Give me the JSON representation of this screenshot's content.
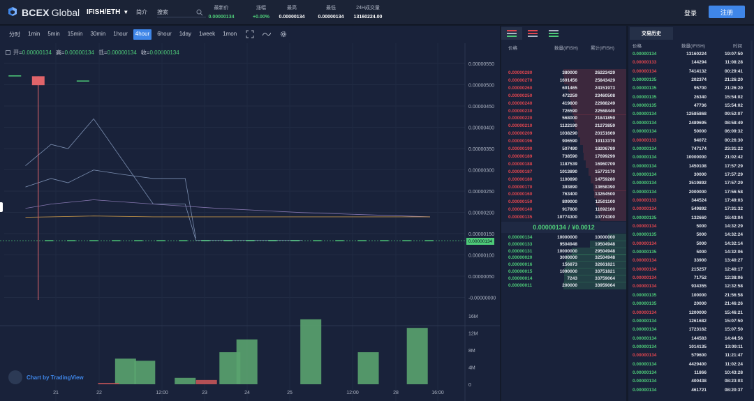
{
  "app": {
    "brand_bold": "BCEX",
    "brand_rest": "Global",
    "pair": "IFISH/ETH",
    "intro_label": "简介",
    "search_placeholder": "搜索",
    "login": "登录",
    "register": "注册"
  },
  "stats": [
    {
      "label": "最新价",
      "value": "0.00000134",
      "color": "#4ecc79",
      "x": 317
    },
    {
      "label": "涨幅",
      "value": "+0.00%",
      "color": "#4ecc79",
      "x": 374
    },
    {
      "label": "最高",
      "value": "0.00000134",
      "color": "#ffffff",
      "x": 418
    },
    {
      "label": "最低",
      "value": "0.00000134",
      "color": "#ffffff",
      "x": 474
    },
    {
      "label": "24H成交量",
      "value": "13160224.00",
      "color": "#ffffff",
      "x": 527
    }
  ],
  "toolbar": {
    "intervals": [
      "分时",
      "1min",
      "5min",
      "15min",
      "30min",
      "1hour",
      "4hour",
      "6hour",
      "1day",
      "1week",
      "1mon"
    ],
    "active": "4hour"
  },
  "ohlc": {
    "open_label": "开=",
    "open": "0.00000134",
    "high_label": "高=",
    "high": "0.00000134",
    "low_label": "低=",
    "low": "0.00000134",
    "close_label": "收=",
    "close": "0.00000134"
  },
  "tv_label": "Chart by TradingView",
  "last_price_tag": "0.00000134",
  "chart_data": {
    "type": "line",
    "price_axis": [
      "0.00000550",
      "0.00000500",
      "0.00000450",
      "0.00000400",
      "0.00000350",
      "0.00000300",
      "0.00000250",
      "0.00000200",
      "0.00000150",
      "0.00000100",
      "0.00000050",
      "-0.00000000"
    ],
    "volume_axis": [
      "16M",
      "12M",
      "8M",
      "4M",
      "0"
    ],
    "x_labels": [
      "21",
      "22",
      "12:00",
      "23",
      "24",
      "25",
      "12:00",
      "28",
      "16:00"
    ],
    "ylim": [
      0,
      5.5e-06
    ],
    "volume_ylim": [
      0,
      16000000
    ],
    "candles": [
      {
        "t": 0.5,
        "o": 5.22e-06,
        "c": 5.22e-06,
        "h": 5.22e-06,
        "l": 5.22e-06,
        "color": "green"
      },
      {
        "t": 1.6,
        "o": 5.2e-06,
        "c": 4.99e-06,
        "h": 5.2e-06,
        "l": -5e-08,
        "color": "red"
      },
      {
        "t": 3.7,
        "o": 5.1e-06,
        "c": 5.1e-06,
        "h": 5.1e-06,
        "l": 5.1e-06,
        "color": "green"
      }
    ],
    "ma_series": [
      {
        "color": "#8ea3c8",
        "x": [
          1,
          2.2,
          3,
          4.2,
          7,
          8.5,
          9,
          12,
          14
        ],
        "y": [
          3.1e-06,
          3.6e-06,
          3.5e-06,
          4.2e-06,
          2.2e-06,
          2.2e-06,
          1.35e-06,
          1.35e-06,
          1.35e-06
        ]
      },
      {
        "color": "#8ea3c8",
        "x": [
          1,
          2.2,
          3,
          4.2,
          5.5,
          7,
          8.5,
          9
        ],
        "y": [
          2.6e-06,
          2.8e-06,
          2.7e-06,
          3e-06,
          2.9e-06,
          2.8e-06,
          2.8e-06,
          1.4e-06
        ]
      },
      {
        "color": "#9a86c6",
        "x": [
          1,
          2.2,
          4.2,
          7,
          10,
          14,
          20
        ],
        "y": [
          2.1e-06,
          2.2e-06,
          2.3e-06,
          2.2e-06,
          2.1e-06,
          2e-06,
          1.9e-06
        ]
      },
      {
        "color": "#d8a24a",
        "x": [
          1,
          2.2,
          4.2,
          7,
          10,
          14,
          20
        ],
        "y": [
          1.89e-06,
          1.9e-06,
          1.92e-06,
          1.9e-06,
          1.9e-06,
          1.9e-06,
          1.9e-06
        ]
      }
    ],
    "volume_bars": [
      {
        "t": 5.7,
        "v": 6000000,
        "color": "green"
      },
      {
        "t": 6.6,
        "v": 5500000,
        "color": "green"
      },
      {
        "t": 8.5,
        "v": 1500000,
        "color": "green"
      },
      {
        "t": 9.5,
        "v": 1000000,
        "color": "red"
      },
      {
        "t": 10.6,
        "v": 7500000,
        "color": "green"
      },
      {
        "t": 11.4,
        "v": 10500000,
        "color": "green"
      },
      {
        "t": 14.4,
        "v": 15200000,
        "color": "green"
      },
      {
        "t": 17.1,
        "v": 7500000,
        "color": "green"
      },
      {
        "t": 19.4,
        "v": 13200000,
        "color": "green"
      },
      {
        "t": 4.9,
        "v": 300000,
        "color": "red"
      }
    ]
  },
  "orderbook": {
    "col_price": "价格",
    "col_amount": "数量(IFISH)",
    "col_total": "累计(IFISH)",
    "asks": [
      [
        "0.00000280",
        "380000",
        "26223429"
      ],
      [
        "0.00000270",
        "1691456",
        "25843429"
      ],
      [
        "0.00000260",
        "691465",
        "24151973"
      ],
      [
        "0.00000250",
        "472259",
        "23460508"
      ],
      [
        "0.00000240",
        "419800",
        "22988249"
      ],
      [
        "0.00000230",
        "726590",
        "22568449"
      ],
      [
        "0.00000220",
        "568000",
        "21841859"
      ],
      [
        "0.00000210",
        "1122190",
        "21273859"
      ],
      [
        "0.00000209",
        "1038290",
        "20151669"
      ],
      [
        "0.00000196",
        "906590",
        "19113379"
      ],
      [
        "0.00000190",
        "507490",
        "18206789"
      ],
      [
        "0.00000189",
        "738590",
        "17699299"
      ],
      [
        "0.00000188",
        "1187539",
        "16960709"
      ],
      [
        "0.00000187",
        "1013890",
        "15773170"
      ],
      [
        "0.00000180",
        "1100890",
        "14759280"
      ],
      [
        "0.00000170",
        "393890",
        "13658390"
      ],
      [
        "0.00000160",
        "763400",
        "13264500"
      ],
      [
        "0.00000150",
        "809000",
        "12501100"
      ],
      [
        "0.00000140",
        "917800",
        "11692100"
      ],
      [
        "0.00000135",
        "10774300",
        "10774300"
      ]
    ],
    "mid_price": "0.00000134",
    "mid_sep": "/",
    "mid_fiat": "¥0.0012",
    "bids": [
      [
        "0.00000134",
        "10000000",
        "10000000"
      ],
      [
        "0.00000133",
        "9504948",
        "19504948"
      ],
      [
        "0.00000131",
        "10000000",
        "29504948"
      ],
      [
        "0.00000020",
        "3000000",
        "32504948"
      ],
      [
        "0.00000016",
        "156873",
        "32661821"
      ],
      [
        "0.00000015",
        "1090000",
        "33751821"
      ],
      [
        "0.00000014",
        "7243",
        "33759064"
      ],
      [
        "0.00000011",
        "200000",
        "33959064"
      ]
    ]
  },
  "history": {
    "tab": "交易历史",
    "col_price": "价格",
    "col_amount": "数量(IFISH)",
    "col_time": "时间",
    "rows": [
      [
        "0.00000134",
        "13160224",
        "19:07:50",
        "g"
      ],
      [
        "0.00000133",
        "144294",
        "11:08:28",
        "r"
      ],
      [
        "0.00000134",
        "7414132",
        "00:29:41",
        "r"
      ],
      [
        "0.00000135",
        "202374",
        "21:26:20",
        "g"
      ],
      [
        "0.00000135",
        "95700",
        "21:26:20",
        "g"
      ],
      [
        "0.00000135",
        "26340",
        "15:54:02",
        "g"
      ],
      [
        "0.00000135",
        "47736",
        "15:54:02",
        "g"
      ],
      [
        "0.00000134",
        "12585868",
        "09:52:07",
        "g"
      ],
      [
        "0.00000134",
        "2489695",
        "08:58:49",
        "g"
      ],
      [
        "0.00000134",
        "50000",
        "06:09:32",
        "g"
      ],
      [
        "0.00000133",
        "94072",
        "00:26:30",
        "r"
      ],
      [
        "0.00000134",
        "747174",
        "23:31:22",
        "g"
      ],
      [
        "0.00000134",
        "10000000",
        "21:02:42",
        "g"
      ],
      [
        "0.00000134",
        "1450108",
        "17:57:29",
        "g"
      ],
      [
        "0.00000134",
        "30000",
        "17:57:29",
        "g"
      ],
      [
        "0.00000134",
        "3519892",
        "17:57:29",
        "g"
      ],
      [
        "0.00000134",
        "2000000",
        "17:56:58",
        "g"
      ],
      [
        "0.00000133",
        "344524",
        "17:49:03",
        "r"
      ],
      [
        "0.00000134",
        "549892",
        "17:31:32",
        "r"
      ],
      [
        "0.00000135",
        "132660",
        "16:43:04",
        "g"
      ],
      [
        "0.00000134",
        "5000",
        "14:32:29",
        "r"
      ],
      [
        "0.00000135",
        "5000",
        "14:32:24",
        "g"
      ],
      [
        "0.00000134",
        "5000",
        "14:32:14",
        "r"
      ],
      [
        "0.00000135",
        "5000",
        "14:32:06",
        "g"
      ],
      [
        "0.00000134",
        "33900",
        "13:40:27",
        "r"
      ],
      [
        "0.00000134",
        "215257",
        "12:40:17",
        "r"
      ],
      [
        "0.00000134",
        "71752",
        "12:38:06",
        "r"
      ],
      [
        "0.00000134",
        "934355",
        "12:32:58",
        "r"
      ],
      [
        "0.00000135",
        "100000",
        "21:56:58",
        "g"
      ],
      [
        "0.00000135",
        "20000",
        "21:46:26",
        "g"
      ],
      [
        "0.00000134",
        "1200000",
        "15:46:21",
        "r"
      ],
      [
        "0.00000134",
        "1261682",
        "15:07:50",
        "g"
      ],
      [
        "0.00000134",
        "1723162",
        "15:07:50",
        "g"
      ],
      [
        "0.00000134",
        "144583",
        "14:44:56",
        "g"
      ],
      [
        "0.00000134",
        "1014135",
        "13:09:11",
        "g"
      ],
      [
        "0.00000134",
        "579600",
        "11:21:47",
        "r"
      ],
      [
        "0.00000134",
        "4429400",
        "11:02:24",
        "g"
      ],
      [
        "0.00000134",
        "11866",
        "10:43:28",
        "g"
      ],
      [
        "0.00000134",
        "400438",
        "08:23:03",
        "g"
      ],
      [
        "0.00000134",
        "461721",
        "08:20:37",
        "g"
      ]
    ]
  }
}
